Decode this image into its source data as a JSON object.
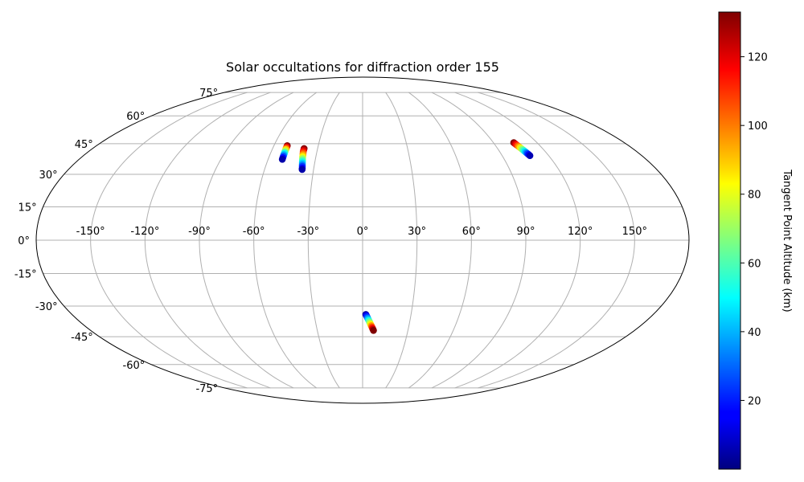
{
  "chart_data": {
    "type": "scatter",
    "projection": "mollweide",
    "title": "Solar occultations for diffraction order 155",
    "grid": true,
    "lon_ticks": [
      -150,
      -120,
      -90,
      -60,
      -30,
      0,
      30,
      60,
      90,
      120,
      150
    ],
    "lon_tick_labels": [
      "-150°",
      "-120°",
      "-90°",
      "-60°",
      "-30°",
      "0°",
      "30°",
      "60°",
      "90°",
      "120°",
      "150°"
    ],
    "lat_ticks": [
      -75,
      -60,
      -45,
      -30,
      -15,
      0,
      15,
      30,
      45,
      60,
      75
    ],
    "lat_tick_labels": [
      "-75°",
      "-60°",
      "-45°",
      "-30°",
      "-15°",
      "0°",
      "15°",
      "30°",
      "45°",
      "60°",
      "75°"
    ],
    "colorbar": {
      "label": "Tangent Point Altitude (km)",
      "colormap": "jet",
      "range": [
        0,
        133
      ],
      "ticks": [
        20,
        40,
        60,
        80,
        100,
        120
      ],
      "tick_labels": [
        "20",
        "40",
        "60",
        "80",
        "100",
        "120"
      ]
    },
    "series": [
      {
        "points": [
          {
            "lon": -51,
            "lat": 44.0,
            "alt": 133
          },
          {
            "lon": -51,
            "lat": 43.5,
            "alt": 125
          },
          {
            "lon": -51,
            "lat": 43.0,
            "alt": 112
          },
          {
            "lon": -51,
            "lat": 42.5,
            "alt": 100
          },
          {
            "lon": -51,
            "lat": 42.0,
            "alt": 88
          },
          {
            "lon": -51,
            "lat": 41.4,
            "alt": 76
          },
          {
            "lon": -51,
            "lat": 40.8,
            "alt": 64
          },
          {
            "lon": -51,
            "lat": 40.2,
            "alt": 52
          },
          {
            "lon": -51,
            "lat": 39.5,
            "alt": 40
          },
          {
            "lon": -51,
            "lat": 38.8,
            "alt": 28
          },
          {
            "lon": -51,
            "lat": 38.0,
            "alt": 16
          },
          {
            "lon": -51,
            "lat": 37.2,
            "alt": 5
          }
        ]
      },
      {
        "points": [
          {
            "lon": -39,
            "lat": 42.5,
            "alt": 133
          },
          {
            "lon": -39,
            "lat": 41.8,
            "alt": 124
          },
          {
            "lon": -39,
            "lat": 41.0,
            "alt": 114
          },
          {
            "lon": -38.8,
            "lat": 40.2,
            "alt": 104
          },
          {
            "lon": -38.6,
            "lat": 39.4,
            "alt": 94
          },
          {
            "lon": -38.5,
            "lat": 38.6,
            "alt": 84
          },
          {
            "lon": -38.3,
            "lat": 37.8,
            "alt": 74
          },
          {
            "lon": -38.1,
            "lat": 37.0,
            "alt": 64
          },
          {
            "lon": -37.9,
            "lat": 36.2,
            "alt": 54
          },
          {
            "lon": -37.7,
            "lat": 35.4,
            "alt": 44
          },
          {
            "lon": -37.5,
            "lat": 34.6,
            "alt": 34
          },
          {
            "lon": -37.3,
            "lat": 33.8,
            "alt": 24
          },
          {
            "lon": -37.1,
            "lat": 33.0,
            "alt": 14
          },
          {
            "lon": -37.0,
            "lat": 32.3,
            "alt": 5
          }
        ]
      },
      {
        "points": [
          {
            "lon": 104.0,
            "lat": 45.5,
            "alt": 133
          },
          {
            "lon": 104.3,
            "lat": 45.0,
            "alt": 124
          },
          {
            "lon": 104.6,
            "lat": 44.5,
            "alt": 115
          },
          {
            "lon": 104.9,
            "lat": 44.0,
            "alt": 106
          },
          {
            "lon": 105.2,
            "lat": 43.5,
            "alt": 96
          },
          {
            "lon": 105.5,
            "lat": 43.0,
            "alt": 86
          },
          {
            "lon": 105.8,
            "lat": 42.5,
            "alt": 76
          },
          {
            "lon": 106.1,
            "lat": 42.0,
            "alt": 66
          },
          {
            "lon": 106.4,
            "lat": 41.5,
            "alt": 56
          },
          {
            "lon": 106.7,
            "lat": 41.0,
            "alt": 46
          },
          {
            "lon": 107.0,
            "lat": 40.5,
            "alt": 36
          },
          {
            "lon": 107.3,
            "lat": 40.0,
            "alt": 26
          },
          {
            "lon": 107.6,
            "lat": 39.5,
            "alt": 16
          },
          {
            "lon": 107.9,
            "lat": 39.0,
            "alt": 6
          }
        ]
      },
      {
        "points": [
          {
            "lon": 2.0,
            "lat": -34.0,
            "alt": 5
          },
          {
            "lon": 2.4,
            "lat": -34.6,
            "alt": 14
          },
          {
            "lon": 2.8,
            "lat": -35.2,
            "alt": 24
          },
          {
            "lon": 3.2,
            "lat": -35.8,
            "alt": 34
          },
          {
            "lon": 3.6,
            "lat": -36.4,
            "alt": 44
          },
          {
            "lon": 4.0,
            "lat": -37.0,
            "alt": 54
          },
          {
            "lon": 4.4,
            "lat": -37.6,
            "alt": 64
          },
          {
            "lon": 4.8,
            "lat": -38.2,
            "alt": 74
          },
          {
            "lon": 5.2,
            "lat": -38.8,
            "alt": 84
          },
          {
            "lon": 5.6,
            "lat": -39.4,
            "alt": 94
          },
          {
            "lon": 6.0,
            "lat": -40.0,
            "alt": 104
          },
          {
            "lon": 6.4,
            "lat": -40.6,
            "alt": 114
          },
          {
            "lon": 6.8,
            "lat": -41.2,
            "alt": 124
          },
          {
            "lon": 7.2,
            "lat": -41.8,
            "alt": 133
          }
        ]
      }
    ]
  }
}
